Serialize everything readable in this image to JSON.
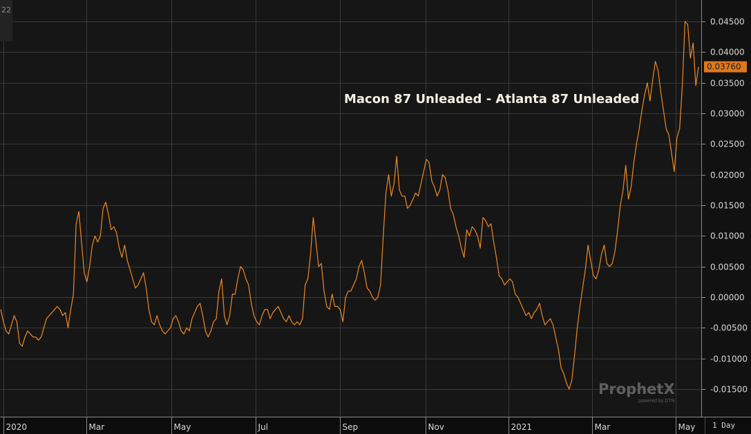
{
  "corner_label": "22",
  "watermark": {
    "brand": "ProphetX",
    "sub": "powered by DTN"
  },
  "period_label": "1 Day",
  "colors": {
    "line": "#f08a24",
    "grid": "#3a3a3a",
    "background": "#161616",
    "axis_text": "#d8d8d8",
    "price_box": "#e0781c"
  },
  "chart_data": {
    "type": "line",
    "title": "Macon 87 Unleaded - Atlanta 87 Unleaded",
    "xlabel": "",
    "ylabel": "",
    "ylim": [
      -0.0195,
      0.0485
    ],
    "grid": true,
    "y_ticks": [
      {
        "value": 0.045,
        "label": "0.04500"
      },
      {
        "value": 0.04,
        "label": "0.04000"
      },
      {
        "value": 0.035,
        "label": "0.03500"
      },
      {
        "value": 0.03,
        "label": "0.03000"
      },
      {
        "value": 0.025,
        "label": "0.02500"
      },
      {
        "value": 0.02,
        "label": "0.02000"
      },
      {
        "value": 0.015,
        "label": "0.01500"
      },
      {
        "value": 0.01,
        "label": "0.01000"
      },
      {
        "value": 0.005,
        "label": "0.00500"
      },
      {
        "value": 0.0,
        "label": "0.00000"
      },
      {
        "value": -0.005,
        "label": "-0.00500"
      },
      {
        "value": -0.01,
        "label": "-0.01000"
      },
      {
        "value": -0.015,
        "label": "-0.01500"
      }
    ],
    "x_ticks": [
      "2020",
      "Mar",
      "May",
      "Jul",
      "Sep",
      "Nov",
      "2021",
      "Mar",
      "May"
    ],
    "last_value_label": "0.03760",
    "series": [
      {
        "values": [
          -0.002,
          -0.004,
          -0.0055,
          -0.006,
          -0.0045,
          -0.003,
          -0.004,
          -0.0075,
          -0.008,
          -0.0065,
          -0.0055,
          -0.006,
          -0.0065,
          -0.0065,
          -0.007,
          -0.0065,
          -0.005,
          -0.0035,
          -0.003,
          -0.0025,
          -0.002,
          -0.0015,
          -0.002,
          -0.003,
          -0.0025,
          -0.005,
          -0.002,
          0.0005,
          0.012,
          0.014,
          0.009,
          0.004,
          0.0025,
          0.005,
          0.0085,
          0.01,
          0.009,
          0.01,
          0.0145,
          0.0155,
          0.0135,
          0.011,
          0.0115,
          0.0105,
          0.008,
          0.0065,
          0.0085,
          0.006,
          0.0045,
          0.003,
          0.0015,
          0.002,
          0.003,
          0.004,
          0.0015,
          -0.002,
          -0.004,
          -0.0045,
          -0.003,
          -0.0045,
          -0.0055,
          -0.006,
          -0.0055,
          -0.005,
          -0.0035,
          -0.003,
          -0.004,
          -0.0055,
          -0.006,
          -0.005,
          -0.0055,
          -0.0035,
          -0.0025,
          -0.0015,
          -0.001,
          -0.003,
          -0.0055,
          -0.0065,
          -0.0055,
          -0.004,
          -0.0035,
          0.001,
          0.003,
          -0.003,
          -0.0045,
          -0.003,
          0.0005,
          0.0005,
          0.003,
          0.005,
          0.0045,
          0.003,
          0.002,
          -0.001,
          -0.003,
          -0.004,
          -0.0045,
          -0.003,
          -0.002,
          -0.002,
          -0.0035,
          -0.0025,
          -0.002,
          -0.0015,
          -0.0025,
          -0.0035,
          -0.004,
          -0.003,
          -0.004,
          -0.0045,
          -0.004,
          -0.0045,
          -0.0035,
          0.002,
          0.003,
          0.007,
          0.013,
          0.009,
          0.005,
          0.0055,
          0.001,
          -0.0015,
          -0.002,
          0.0005,
          -0.0015,
          -0.0015,
          -0.002,
          -0.004,
          0.0,
          0.001,
          0.001,
          0.002,
          0.003,
          0.005,
          0.006,
          0.004,
          0.0015,
          0.001,
          0.0,
          -0.0005,
          0.0,
          0.002,
          0.01,
          0.017,
          0.02,
          0.0165,
          0.0185,
          0.023,
          0.0175,
          0.0165,
          0.0165,
          0.0145,
          0.015,
          0.016,
          0.017,
          0.0165,
          0.0185,
          0.0205,
          0.0225,
          0.022,
          0.019,
          0.018,
          0.0165,
          0.0175,
          0.02,
          0.0195,
          0.0175,
          0.0145,
          0.0135,
          0.0115,
          0.01,
          0.008,
          0.0065,
          0.011,
          0.01,
          0.0115,
          0.011,
          0.01,
          0.008,
          0.013,
          0.0125,
          0.0115,
          0.012,
          0.009,
          0.0065,
          0.0035,
          0.003,
          0.002,
          0.0025,
          0.003,
          0.0025,
          0.0005,
          0.0,
          -0.001,
          -0.002,
          -0.003,
          -0.0025,
          -0.0035,
          -0.0025,
          -0.002,
          -0.001,
          -0.003,
          -0.0045,
          -0.004,
          -0.0035,
          -0.0045,
          -0.0065,
          -0.0085,
          -0.0115,
          -0.0125,
          -0.014,
          -0.015,
          -0.0135,
          -0.0095,
          -0.005,
          -0.0015,
          0.0015,
          0.0045,
          0.0085,
          0.006,
          0.0035,
          0.003,
          0.0045,
          0.007,
          0.0085,
          0.0055,
          0.005,
          0.0055,
          0.0075,
          0.011,
          0.015,
          0.0175,
          0.0215,
          0.016,
          0.018,
          0.022,
          0.025,
          0.0275,
          0.0305,
          0.033,
          0.035,
          0.032,
          0.0355,
          0.0385,
          0.037,
          0.0335,
          0.0305,
          0.0275,
          0.0265,
          0.0235,
          0.0205,
          0.026,
          0.0275,
          0.0345,
          0.045,
          0.0445,
          0.039,
          0.0415,
          0.0345,
          0.0376
        ]
      }
    ]
  }
}
